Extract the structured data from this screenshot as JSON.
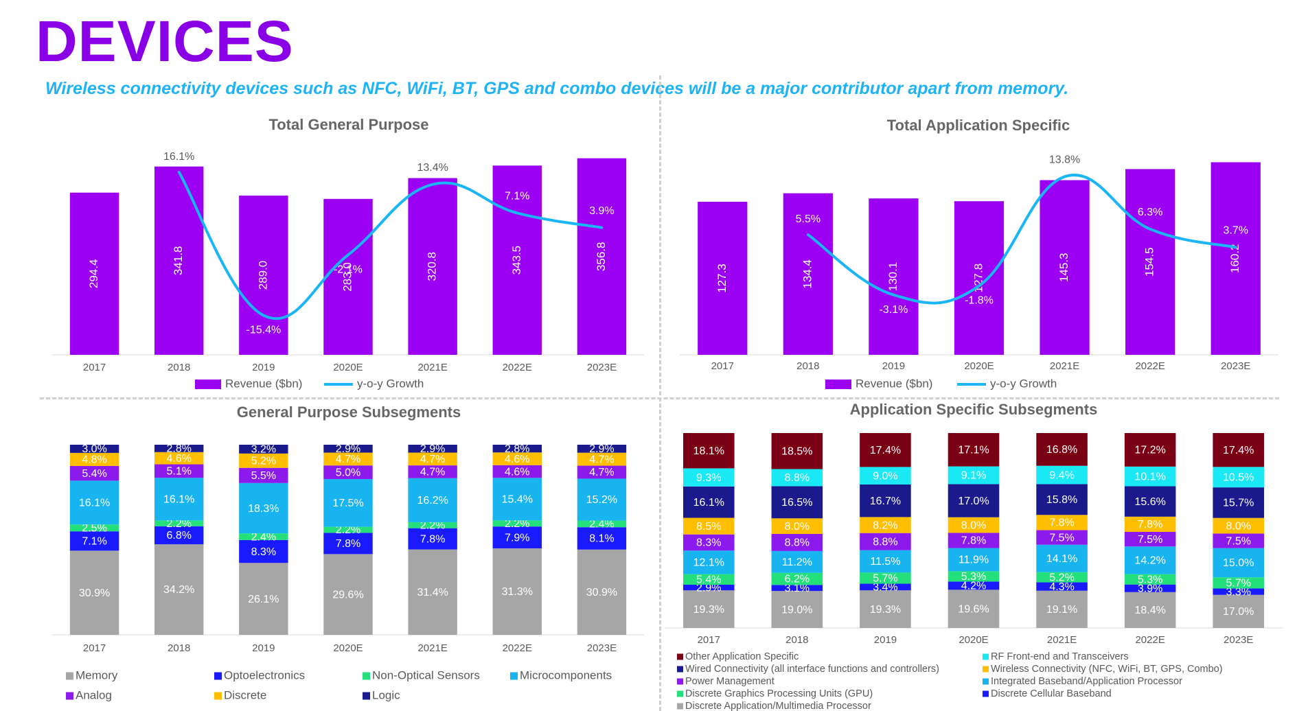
{
  "header": {
    "title": "DEVICES",
    "subtitle": "Wireless connectivity devices such as NFC, WiFi, BT, GPS and combo devices will be a major contributor apart from memory."
  },
  "colors": {
    "title": "#8a00e6",
    "subtitle": "#1eb3f5",
    "revenue_bar": "#9b00f2",
    "growth_line": "#19b5f5"
  },
  "chart_data": [
    {
      "type": "bar",
      "title": "Total General Purpose",
      "categories": [
        "2017",
        "2018",
        "2019",
        "2020E",
        "2021E",
        "2022E",
        "2023E"
      ],
      "series": [
        {
          "name": "Revenue ($bn)",
          "kind": "bar",
          "values": [
            294.4,
            341.8,
            289.0,
            283.0,
            320.8,
            343.5,
            356.8
          ],
          "labels": [
            "294.4",
            "341.8",
            "289.0",
            "283.0",
            "320.8",
            "343.5",
            "356.8"
          ]
        },
        {
          "name": "y-o-y Growth",
          "kind": "line",
          "values": [
            null,
            16.1,
            -15.4,
            -2.1,
            13.4,
            7.1,
            3.9
          ],
          "labels": [
            "",
            "16.1%",
            "-15.4%",
            "-2.1%",
            "13.4%",
            "7.1%",
            "3.9%"
          ]
        }
      ],
      "ylim": [
        0,
        370
      ],
      "growth_ylim": [
        -20,
        20
      ],
      "legend_position": "bottom",
      "grid": false
    },
    {
      "type": "bar",
      "title": "Total Application Specific",
      "categories": [
        "2017",
        "2018",
        "2019",
        "2020E",
        "2021E",
        "2022E",
        "2023E"
      ],
      "series": [
        {
          "name": "Revenue ($bn)",
          "kind": "bar",
          "values": [
            127.3,
            134.4,
            130.1,
            127.8,
            145.3,
            154.5,
            160.2
          ],
          "labels": [
            "127.3",
            "134.4",
            "130.1",
            "127.8",
            "145.3",
            "154.5",
            "160.2"
          ]
        },
        {
          "name": "y-o-y Growth",
          "kind": "line",
          "values": [
            null,
            5.5,
            -3.1,
            -1.8,
            13.8,
            6.3,
            3.7
          ],
          "labels": [
            "",
            "5.5%",
            "-3.1%",
            "-1.8%",
            "13.8%",
            "6.3%",
            "3.7%"
          ]
        }
      ],
      "ylim": [
        0,
        165
      ],
      "growth_ylim": [
        -10,
        16
      ],
      "legend_position": "bottom",
      "grid": false
    },
    {
      "type": "bar",
      "stacked": true,
      "percent": true,
      "title": "General Purpose Subsegments",
      "categories": [
        "2017",
        "2018",
        "2019",
        "2020E",
        "2021E",
        "2022E",
        "2023E"
      ],
      "series": [
        {
          "name": "Memory",
          "color": "#a6a6a6",
          "values": [
            30.9,
            34.2,
            26.1,
            29.6,
            31.4,
            31.3,
            30.9
          ]
        },
        {
          "name": "Optoelectronics",
          "color": "#1a1aff",
          "values": [
            7.1,
            6.8,
            8.3,
            7.8,
            7.8,
            7.9,
            8.1
          ]
        },
        {
          "name": "Non-Optical Sensors",
          "color": "#23e07a",
          "values": [
            2.5,
            2.2,
            2.4,
            2.2,
            2.2,
            2.2,
            2.4
          ]
        },
        {
          "name": "Microcomponents",
          "color": "#17b4f0",
          "values": [
            16.1,
            16.1,
            18.3,
            17.5,
            16.2,
            15.4,
            15.2
          ]
        },
        {
          "name": "Analog",
          "color": "#8c1aec",
          "values": [
            5.4,
            5.1,
            5.5,
            5.0,
            4.7,
            4.6,
            4.7
          ]
        },
        {
          "name": "Discrete",
          "color": "#ffbf00",
          "values": [
            4.8,
            4.6,
            5.2,
            4.7,
            4.7,
            4.6,
            4.7
          ]
        },
        {
          "name": "Logic",
          "color": "#1a1a8c",
          "values": [
            3.0,
            2.8,
            3.2,
            2.9,
            2.9,
            2.8,
            2.9
          ]
        }
      ],
      "legend_position": "bottom"
    },
    {
      "type": "bar",
      "stacked": true,
      "percent": true,
      "title": "Application Specific Subsegments",
      "categories": [
        "2017",
        "2018",
        "2019",
        "2020E",
        "2021E",
        "2022E",
        "2023E"
      ],
      "series": [
        {
          "name": "Discrete Application/Multimedia Processor",
          "color": "#a6a6a6",
          "values": [
            19.3,
            19.0,
            19.3,
            19.6,
            19.1,
            18.4,
            17.0
          ]
        },
        {
          "name": "Discrete Cellular Baseband",
          "color": "#1a1aff",
          "values": [
            2.9,
            3.1,
            3.4,
            4.2,
            4.3,
            3.9,
            3.3
          ]
        },
        {
          "name": "Discrete Graphics Processing Units (GPU)",
          "color": "#23e07a",
          "values": [
            5.4,
            6.2,
            5.7,
            5.3,
            5.2,
            5.3,
            5.7
          ]
        },
        {
          "name": "Integrated Baseband/Application Processor",
          "color": "#17b4f0",
          "values": [
            12.1,
            11.2,
            11.5,
            11.9,
            14.1,
            14.2,
            15.0
          ]
        },
        {
          "name": "Power Management",
          "color": "#8c1aec",
          "values": [
            8.3,
            8.8,
            8.8,
            7.8,
            7.5,
            7.5,
            7.5
          ]
        },
        {
          "name": "Wireless Connectivity (NFC, WiFi, BT, GPS, Combo)",
          "color": "#ffbf00",
          "values": [
            8.5,
            8.0,
            8.2,
            8.0,
            7.8,
            7.8,
            8.0
          ]
        },
        {
          "name": "Wired Connectivity (all interface functions and controllers)",
          "color": "#1a1a8c",
          "values": [
            16.1,
            16.5,
            16.7,
            17.0,
            15.8,
            15.6,
            15.7
          ]
        },
        {
          "name": "RF Front-end and Transceivers",
          "color": "#1ae8f5",
          "values": [
            9.3,
            8.8,
            9.0,
            9.1,
            9.4,
            10.1,
            10.5
          ]
        },
        {
          "name": "Other Application Specific",
          "color": "#7a0014",
          "values": [
            18.1,
            18.5,
            17.4,
            17.1,
            16.8,
            17.2,
            17.4
          ]
        }
      ],
      "legend_position": "bottom"
    }
  ]
}
